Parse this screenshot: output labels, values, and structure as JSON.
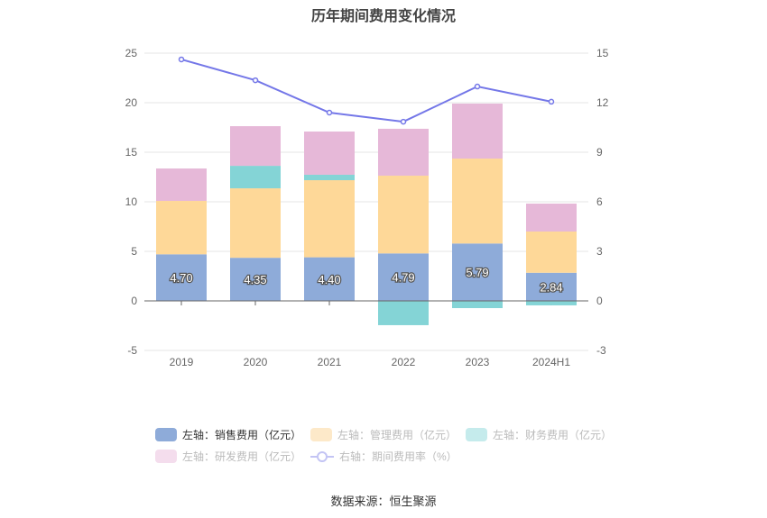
{
  "chart_data": {
    "type": "bar",
    "title": "历年期间费用变化情况",
    "categories": [
      "2019",
      "2020",
      "2021",
      "2022",
      "2023",
      "2024H1"
    ],
    "left_axis": {
      "ylim": [
        -5,
        25
      ],
      "ticks": [
        -5,
        0,
        5,
        10,
        15,
        20,
        25
      ]
    },
    "right_axis": {
      "ylim": [
        -3,
        15
      ],
      "ticks": [
        -3,
        0,
        3,
        6,
        9,
        12,
        15
      ]
    },
    "grid": true,
    "stacked": true,
    "series": [
      {
        "name": "左轴：销售费用（亿元）",
        "type": "bar",
        "axis": "left",
        "color": "#8eabd9",
        "values": [
          4.7,
          4.35,
          4.4,
          4.79,
          5.79,
          2.84
        ],
        "labels": [
          "4.70",
          "4.35",
          "4.40",
          "4.79",
          "5.79",
          "2.84"
        ]
      },
      {
        "name": "左轴：管理费用（亿元）",
        "type": "bar",
        "axis": "left",
        "color": "#fed898",
        "values": [
          5.39,
          7.01,
          7.78,
          7.85,
          8.57,
          4.16
        ]
      },
      {
        "name": "左轴：财务费用（亿元）",
        "type": "bar",
        "axis": "left",
        "color": "#84d4d6",
        "values": [
          0,
          2.27,
          0.55,
          -2.45,
          -0.73,
          -0.45
        ]
      },
      {
        "name": "左轴：研发费用（亿元）",
        "type": "bar",
        "axis": "left",
        "color": "#e6b8d8",
        "values": [
          3.27,
          4.0,
          4.36,
          4.73,
          5.55,
          2.82
        ]
      },
      {
        "name": "右轴：期间费用率（%）",
        "type": "line",
        "axis": "right",
        "color": "#7477e8",
        "values": [
          14.62,
          13.36,
          11.4,
          10.85,
          12.98,
          12.06
        ]
      }
    ],
    "legend_position": "bottom",
    "legend_active": [
      true,
      false,
      false,
      false,
      false
    ],
    "source": "数据来源：恒生聚源"
  }
}
